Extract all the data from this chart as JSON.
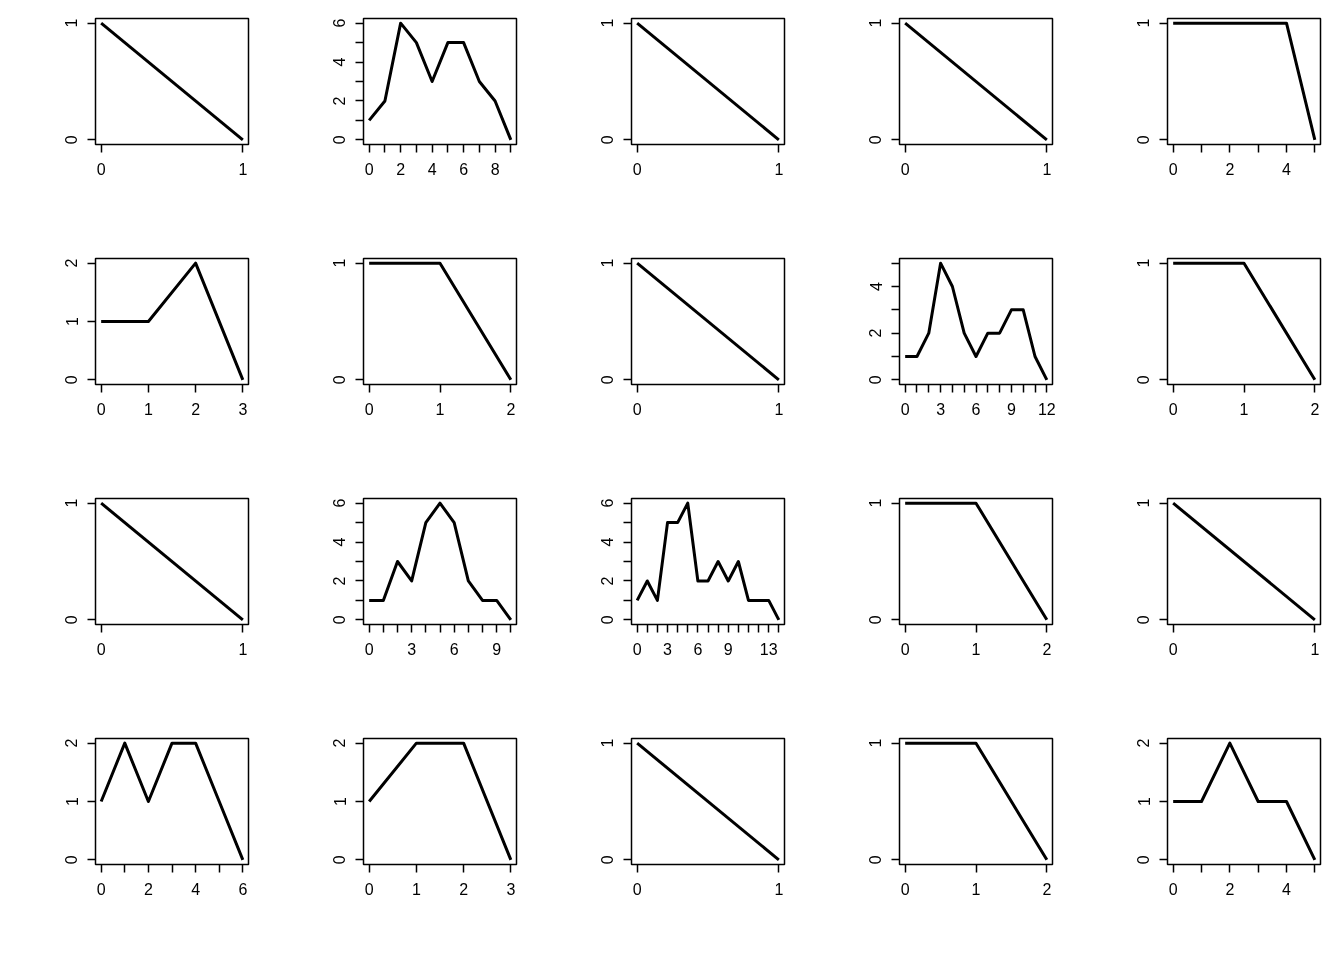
{
  "chart_data": [
    {
      "type": "line",
      "x": [
        0,
        1
      ],
      "values": [
        1,
        0
      ],
      "color": "#000000",
      "xlim": [
        -0.04,
        1.04
      ],
      "ylim": [
        -0.04,
        1.04
      ],
      "xticks": [
        0,
        1
      ],
      "yticks": [
        0,
        1
      ]
    },
    {
      "type": "line",
      "x": [
        0,
        1,
        2,
        3,
        4,
        5,
        6,
        7,
        8,
        9
      ],
      "values": [
        1,
        2,
        6,
        5,
        3,
        5,
        5,
        3,
        2,
        0
      ],
      "color": "#000000",
      "xlim": [
        -0.36,
        9.36
      ],
      "ylim": [
        -0.24,
        6.24
      ],
      "xticks": [
        0,
        {
          "value": 1,
          "label": null
        },
        2,
        {
          "value": 3,
          "label": null
        },
        4,
        {
          "value": 5,
          "label": null
        },
        6,
        {
          "value": 7,
          "label": null
        },
        8,
        {
          "value": 9,
          "label": null
        }
      ],
      "yticks": [
        0,
        {
          "value": 1,
          "label": null
        },
        2,
        {
          "value": 3,
          "label": null
        },
        4,
        {
          "value": 5,
          "label": null
        },
        6
      ]
    },
    {
      "type": "line",
      "x": [
        0,
        1
      ],
      "values": [
        1,
        0
      ],
      "color": "#000000",
      "xlim": [
        -0.04,
        1.04
      ],
      "ylim": [
        -0.04,
        1.04
      ],
      "xticks": [
        0,
        1
      ],
      "yticks": [
        0,
        1
      ]
    },
    {
      "type": "line",
      "x": [
        0,
        1
      ],
      "values": [
        1,
        0
      ],
      "color": "#000000",
      "xlim": [
        -0.04,
        1.04
      ],
      "ylim": [
        -0.04,
        1.04
      ],
      "xticks": [
        0,
        1
      ],
      "yticks": [
        0,
        1
      ]
    },
    {
      "type": "line",
      "x": [
        0,
        1,
        2,
        3,
        4,
        5
      ],
      "values": [
        1,
        1,
        1,
        1,
        1,
        0
      ],
      "color": "#000000",
      "xlim": [
        -0.2,
        5.2
      ],
      "ylim": [
        -0.04,
        1.04
      ],
      "xticks": [
        0,
        {
          "value": 1,
          "label": null
        },
        2,
        {
          "value": 3,
          "label": null
        },
        4,
        {
          "value": 5,
          "label": null
        }
      ],
      "yticks": [
        0,
        1
      ]
    },
    {
      "type": "line",
      "x": [
        0,
        1,
        2,
        3
      ],
      "values": [
        1,
        1,
        2,
        0
      ],
      "color": "#000000",
      "xlim": [
        -0.12,
        3.12
      ],
      "ylim": [
        -0.08,
        2.08
      ],
      "xticks": [
        0,
        1,
        2,
        3
      ],
      "yticks": [
        0,
        1,
        2
      ]
    },
    {
      "type": "line",
      "x": [
        0,
        1,
        2
      ],
      "values": [
        1,
        1,
        0
      ],
      "color": "#000000",
      "xlim": [
        -0.08,
        2.08
      ],
      "ylim": [
        -0.04,
        1.04
      ],
      "xticks": [
        0,
        1,
        2
      ],
      "yticks": [
        0,
        1
      ]
    },
    {
      "type": "line",
      "x": [
        0,
        1
      ],
      "values": [
        1,
        0
      ],
      "color": "#000000",
      "xlim": [
        -0.04,
        1.04
      ],
      "ylim": [
        -0.04,
        1.04
      ],
      "xticks": [
        0,
        1
      ],
      "yticks": [
        0,
        1
      ]
    },
    {
      "type": "line",
      "x": [
        0,
        1,
        2,
        3,
        4,
        5,
        6,
        7,
        8,
        9,
        10,
        11,
        12
      ],
      "values": [
        1,
        1,
        2,
        5,
        4,
        2,
        1,
        2,
        2,
        3,
        3,
        1,
        0
      ],
      "color": "#000000",
      "xlim": [
        -0.48,
        12.48
      ],
      "ylim": [
        -0.2,
        5.2
      ],
      "xticks": [
        0,
        {
          "value": 1,
          "label": null
        },
        {
          "value": 2,
          "label": null
        },
        3,
        {
          "value": 4,
          "label": null
        },
        {
          "value": 5,
          "label": null
        },
        6,
        {
          "value": 7,
          "label": null
        },
        {
          "value": 8,
          "label": null
        },
        9,
        {
          "value": 10,
          "label": null
        },
        {
          "value": 11,
          "label": null
        },
        12
      ],
      "yticks": [
        0,
        {
          "value": 1,
          "label": null
        },
        2,
        {
          "value": 3,
          "label": null
        },
        4,
        {
          "value": 5,
          "label": null
        }
      ]
    },
    {
      "type": "line",
      "x": [
        0,
        1,
        2
      ],
      "values": [
        1,
        1,
        0
      ],
      "color": "#000000",
      "xlim": [
        -0.08,
        2.08
      ],
      "ylim": [
        -0.04,
        1.04
      ],
      "xticks": [
        0,
        1,
        2
      ],
      "yticks": [
        0,
        1
      ]
    },
    {
      "type": "line",
      "x": [
        0,
        1
      ],
      "values": [
        1,
        0
      ],
      "color": "#000000",
      "xlim": [
        -0.04,
        1.04
      ],
      "ylim": [
        -0.04,
        1.04
      ],
      "xticks": [
        0,
        1
      ],
      "yticks": [
        0,
        1
      ]
    },
    {
      "type": "line",
      "x": [
        0,
        1,
        2,
        3,
        4,
        5,
        6,
        7,
        8,
        9,
        10
      ],
      "values": [
        1,
        1,
        3,
        2,
        5,
        6,
        5,
        2,
        1,
        1,
        0
      ],
      "color": "#000000",
      "xlim": [
        -0.4,
        10.4
      ],
      "ylim": [
        -0.24,
        6.24
      ],
      "xticks": [
        0,
        {
          "value": 1,
          "label": null
        },
        {
          "value": 2,
          "label": null
        },
        3,
        {
          "value": 4,
          "label": null
        },
        {
          "value": 5,
          "label": null
        },
        6,
        {
          "value": 7,
          "label": null
        },
        {
          "value": 8,
          "label": null
        },
        9,
        {
          "value": 10,
          "label": null
        }
      ],
      "yticks": [
        0,
        {
          "value": 1,
          "label": null
        },
        2,
        {
          "value": 3,
          "label": null
        },
        4,
        {
          "value": 5,
          "label": null
        },
        6
      ]
    },
    {
      "type": "line",
      "x": [
        0,
        1,
        2,
        3,
        4,
        5,
        6,
        7,
        8,
        9,
        10,
        11,
        12,
        13,
        14
      ],
      "values": [
        1,
        2,
        1,
        5,
        5,
        6,
        2,
        2,
        3,
        2,
        3,
        1,
        1,
        1,
        0
      ],
      "color": "#000000",
      "xlim": [
        -0.56,
        14.56
      ],
      "ylim": [
        -0.24,
        6.24
      ],
      "xticks": [
        0,
        {
          "value": 1,
          "label": null
        },
        {
          "value": 2,
          "label": null
        },
        3,
        {
          "value": 4,
          "label": null
        },
        {
          "value": 5,
          "label": null
        },
        6,
        {
          "value": 7,
          "label": null
        },
        {
          "value": 8,
          "label": null
        },
        9,
        {
          "value": 10,
          "label": null
        },
        {
          "value": 11,
          "label": null
        },
        {
          "value": 12,
          "label": null
        },
        13,
        {
          "value": 14,
          "label": null
        }
      ],
      "yticks": [
        0,
        {
          "value": 1,
          "label": null
        },
        2,
        {
          "value": 3,
          "label": null
        },
        4,
        {
          "value": 5,
          "label": null
        },
        6
      ]
    },
    {
      "type": "line",
      "x": [
        0,
        1,
        2
      ],
      "values": [
        1,
        1,
        0
      ],
      "color": "#000000",
      "xlim": [
        -0.08,
        2.08
      ],
      "ylim": [
        -0.04,
        1.04
      ],
      "xticks": [
        0,
        1,
        2
      ],
      "yticks": [
        0,
        1
      ]
    },
    {
      "type": "line",
      "x": [
        0,
        1
      ],
      "values": [
        1,
        0
      ],
      "color": "#000000",
      "xlim": [
        -0.04,
        1.04
      ],
      "ylim": [
        -0.04,
        1.04
      ],
      "xticks": [
        0,
        1
      ],
      "yticks": [
        0,
        1
      ]
    },
    {
      "type": "line",
      "x": [
        0,
        1,
        2,
        3,
        4,
        5,
        6
      ],
      "values": [
        1,
        2,
        1,
        2,
        2,
        1,
        0
      ],
      "color": "#000000",
      "xlim": [
        -0.24,
        6.24
      ],
      "ylim": [
        -0.08,
        2.08
      ],
      "xticks": [
        0,
        {
          "value": 1,
          "label": null
        },
        2,
        {
          "value": 3,
          "label": null
        },
        4,
        {
          "value": 5,
          "label": null
        },
        6
      ],
      "yticks": [
        0,
        1,
        2
      ]
    },
    {
      "type": "line",
      "x": [
        0,
        1,
        2,
        3
      ],
      "values": [
        1,
        2,
        2,
        0
      ],
      "color": "#000000",
      "xlim": [
        -0.12,
        3.12
      ],
      "ylim": [
        -0.08,
        2.08
      ],
      "xticks": [
        0,
        1,
        2,
        3
      ],
      "yticks": [
        0,
        1,
        2
      ]
    },
    {
      "type": "line",
      "x": [
        0,
        1
      ],
      "values": [
        1,
        0
      ],
      "color": "#000000",
      "xlim": [
        -0.04,
        1.04
      ],
      "ylim": [
        -0.04,
        1.04
      ],
      "xticks": [
        0,
        1
      ],
      "yticks": [
        0,
        1
      ]
    },
    {
      "type": "line",
      "x": [
        0,
        1,
        2
      ],
      "values": [
        1,
        1,
        0
      ],
      "color": "#000000",
      "xlim": [
        -0.08,
        2.08
      ],
      "ylim": [
        -0.04,
        1.04
      ],
      "xticks": [
        0,
        1,
        2
      ],
      "yticks": [
        0,
        1
      ]
    },
    {
      "type": "line",
      "x": [
        0,
        1,
        2,
        3,
        4,
        5
      ],
      "values": [
        1,
        1,
        2,
        1,
        1,
        0
      ],
      "color": "#000000",
      "xlim": [
        -0.2,
        5.2
      ],
      "ylim": [
        -0.08,
        2.08
      ],
      "xticks": [
        0,
        {
          "value": 1,
          "label": null
        },
        2,
        {
          "value": 3,
          "label": null
        },
        4,
        {
          "value": 5,
          "label": null
        }
      ],
      "yticks": [
        0,
        1,
        2
      ]
    }
  ]
}
